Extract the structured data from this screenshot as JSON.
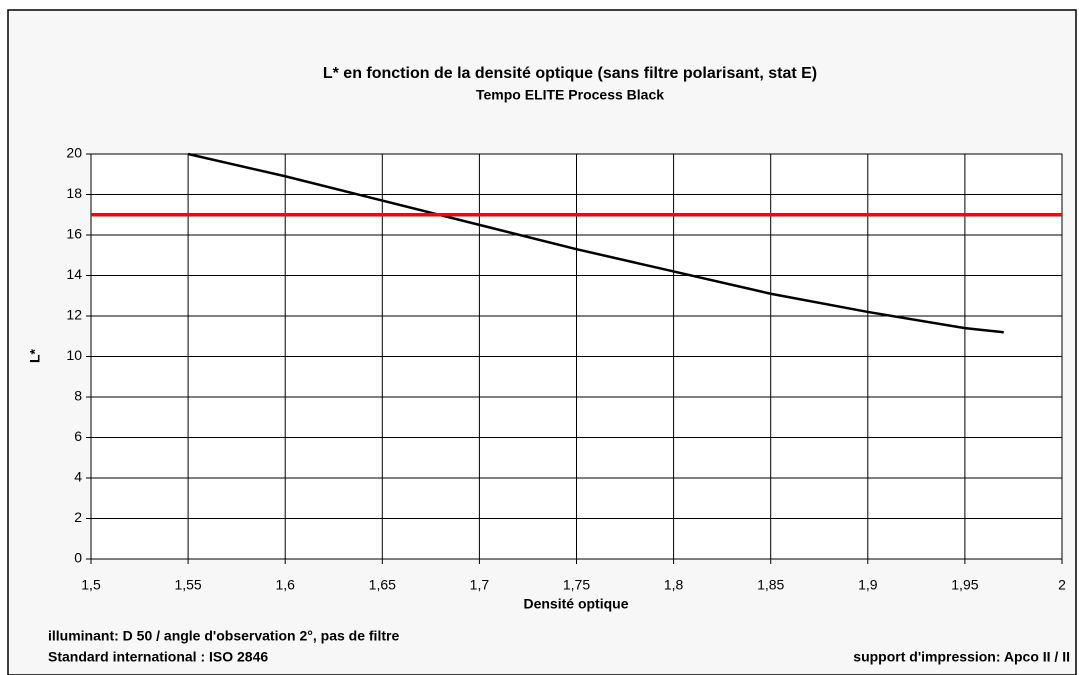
{
  "chart_data": {
    "type": "line",
    "title": "L* en fonction de la densité optique (sans filtre polarisant, stat E)",
    "subtitle": "Tempo ELITE Process Black",
    "x_label": "Densité optique",
    "y_label": "L*",
    "annotations": [
      "illuminant: D 50 / angle d'observation 2°, pas de filtre",
      "Standard international : ISO 2846",
      "support d'impression: Apco II / II"
    ],
    "series": [
      {
        "color": "#000000",
        "x": [
          1.55,
          1.6,
          1.65,
          1.7,
          1.75,
          1.8,
          1.85,
          1.9,
          1.95,
          1.97
        ],
        "values": [
          20,
          18.9,
          17.7,
          16.5,
          15.3,
          14.2,
          13.1,
          12.2,
          11.4,
          11.2
        ]
      },
      {
        "color": "#ff0000",
        "x": [
          1.5,
          2
        ],
        "values": [
          17,
          17
        ]
      }
    ],
    "xlim": [
      1.5,
      2
    ],
    "xticks": [
      {
        "value": 1.5,
        "label": "1,5"
      },
      {
        "value": 1.55,
        "label": "1,55"
      },
      {
        "value": 1.6,
        "label": "1,6"
      },
      {
        "value": 1.65,
        "label": "1,65"
      },
      {
        "value": 1.7,
        "label": "1,7"
      },
      {
        "value": 1.75,
        "label": "1,75"
      },
      {
        "value": 1.8,
        "label": "1,8"
      },
      {
        "value": 1.85,
        "label": "1,85"
      },
      {
        "value": 1.9,
        "label": "1,9"
      },
      {
        "value": 1.95,
        "label": "1,95"
      },
      {
        "value": 2,
        "label": "2"
      }
    ],
    "ylim": [
      0,
      20
    ],
    "yticks": [
      0,
      2,
      4,
      6,
      8,
      10,
      12,
      14,
      16,
      18,
      20
    ],
    "grid": true
  }
}
